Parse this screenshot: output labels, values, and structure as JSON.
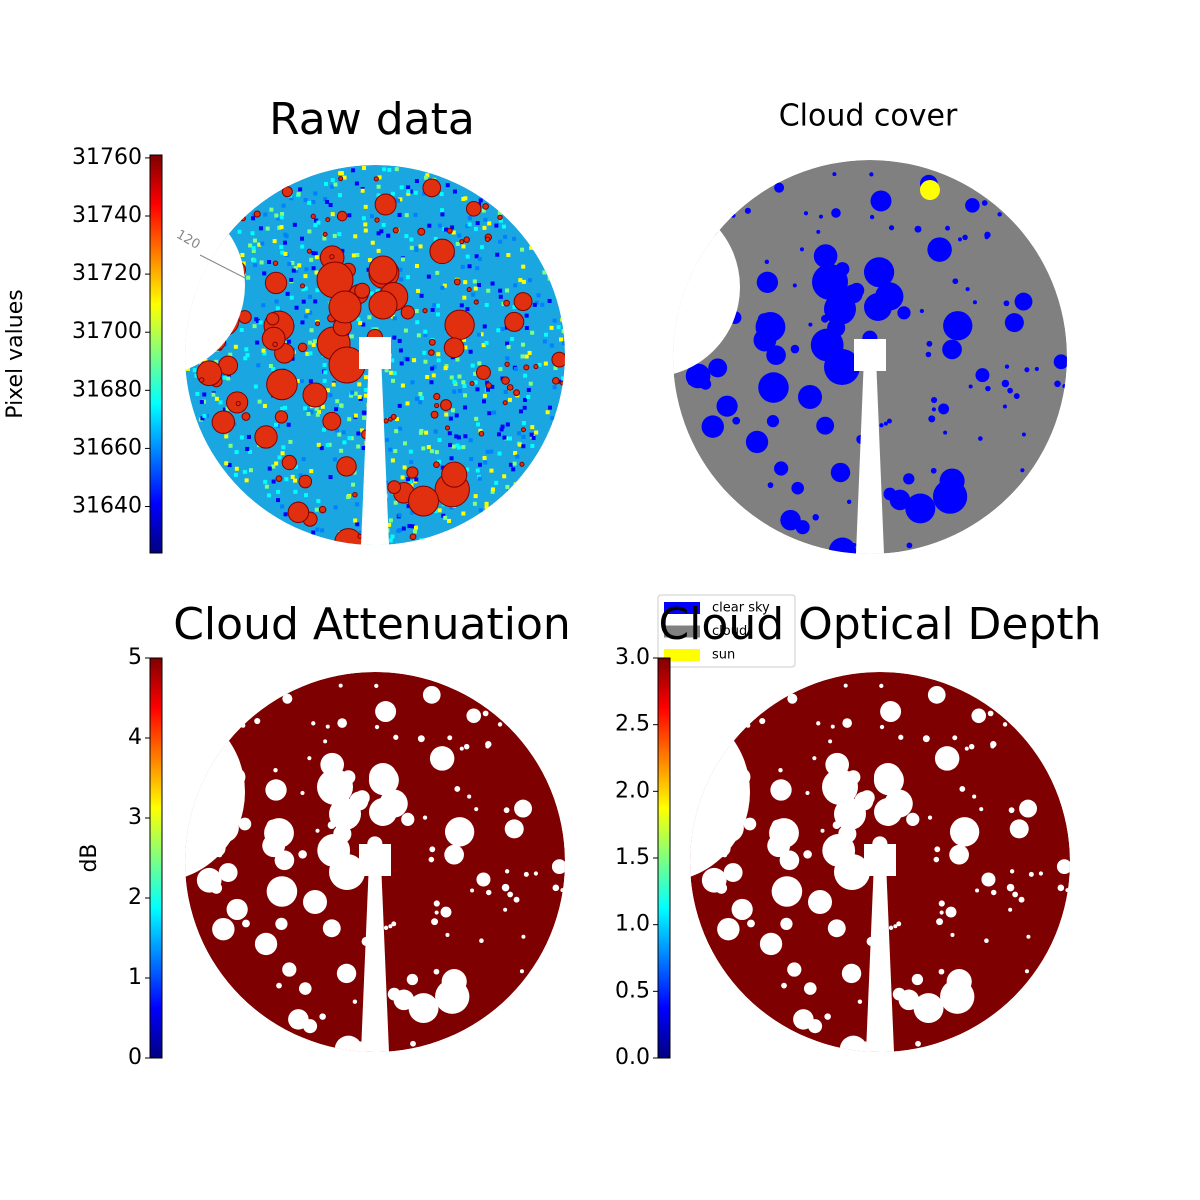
{
  "chart_data": [
    {
      "type": "image",
      "title": "Raw data",
      "annotations": [
        "120"
      ],
      "colormap": "jet",
      "colorbar": {
        "label": "Pixel values",
        "lim": [
          31624,
          31761
        ],
        "ticks": [
          31640,
          31660,
          31680,
          31700,
          31720,
          31740,
          31760
        ]
      }
    },
    {
      "type": "image",
      "title": "Cloud cover",
      "legend": [
        {
          "name": "clear sky",
          "color": "#0000ff"
        },
        {
          "name": "cloud",
          "color": "#808080"
        },
        {
          "name": "sun",
          "color": "#ffff00"
        }
      ]
    },
    {
      "type": "image",
      "title": "Cloud Attenuation",
      "colormap": "jet",
      "colorbar": {
        "label": "dB",
        "lim": [
          0,
          5
        ],
        "ticks": [
          0,
          1,
          2,
          3,
          4,
          5
        ]
      }
    },
    {
      "type": "image",
      "title": "Cloud Optical Depth",
      "colormap": "jet",
      "colorbar": {
        "lim": [
          0,
          3
        ],
        "ticks": [
          {
            "value": 0,
            "label": "0.0"
          },
          {
            "value": 0.5,
            "label": "0.5"
          },
          {
            "value": 1,
            "label": "1.0"
          },
          {
            "value": 1.5,
            "label": "1.5"
          },
          {
            "value": 2,
            "label": "2.0"
          },
          {
            "value": 2.5,
            "label": "2.5"
          },
          {
            "value": 3,
            "label": "3.0"
          }
        ]
      }
    }
  ]
}
